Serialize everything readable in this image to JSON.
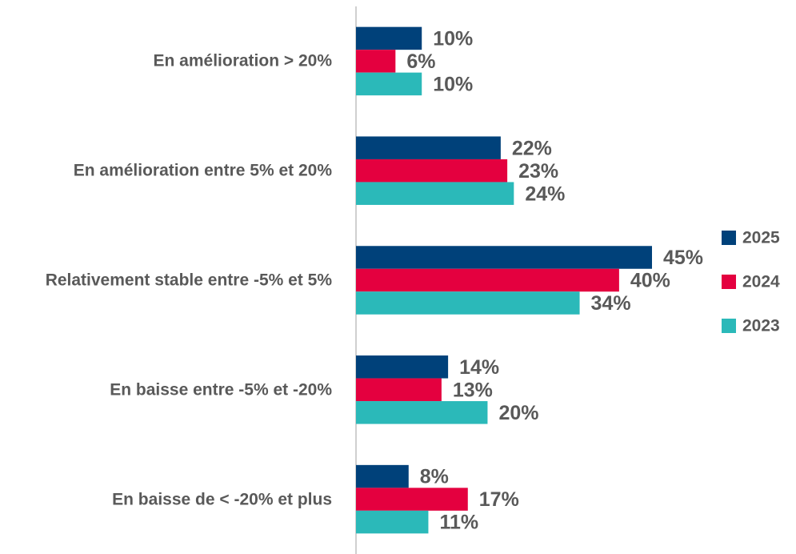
{
  "chart_data": {
    "type": "hbar",
    "categories": [
      "En amélioration > 20%",
      "En amélioration entre 5% et 20%",
      "Relativement stable entre -5% et 5%",
      "En baisse entre -5% et -20%",
      "En baisse de < -20% et plus"
    ],
    "series": [
      {
        "name": "2025",
        "color": "#00417a",
        "values": [
          10,
          22,
          45,
          14,
          8
        ],
        "value_labels": [
          "10%",
          "22%",
          "45%",
          "14%",
          "8%"
        ]
      },
      {
        "name": "2024",
        "color": "#e4003f",
        "values": [
          6,
          23,
          40,
          13,
          17
        ],
        "value_labels": [
          "6%",
          "23%",
          "40%",
          "13%",
          "17%"
        ]
      },
      {
        "name": "2023",
        "color": "#2bb9b9",
        "values": [
          10,
          24,
          34,
          20,
          11
        ],
        "value_labels": [
          "10%",
          "24%",
          "34%",
          "20%",
          "11%"
        ]
      }
    ],
    "xlim": [
      0,
      45
    ],
    "legend": "right"
  }
}
